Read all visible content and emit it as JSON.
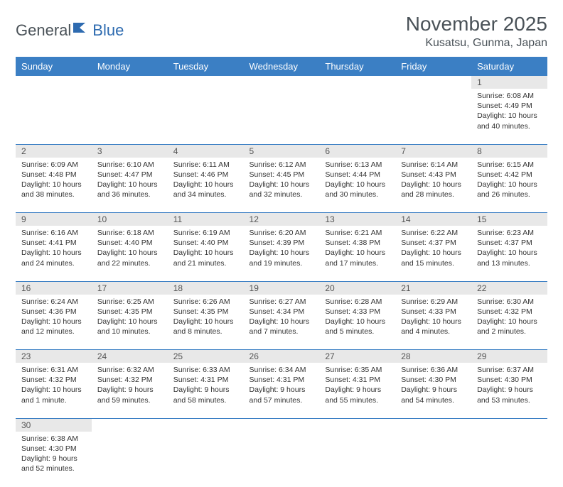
{
  "logo": {
    "text1": "General",
    "text2": "Blue"
  },
  "title": "November 2025",
  "location": "Kusatsu, Gunma, Japan",
  "colors": {
    "header_bg": "#3b7fc4",
    "header_text": "#ffffff",
    "daynum_bg": "#e8e8e8",
    "text": "#4a5258",
    "cell_text": "#333333",
    "border": "#3b7fc4",
    "logo_accent": "#2e6bb0"
  },
  "weekdays": [
    "Sunday",
    "Monday",
    "Tuesday",
    "Wednesday",
    "Thursday",
    "Friday",
    "Saturday"
  ],
  "weeks": [
    {
      "nums": [
        "",
        "",
        "",
        "",
        "",
        "",
        "1"
      ],
      "cells": [
        null,
        null,
        null,
        null,
        null,
        null,
        {
          "sunrise": "6:08 AM",
          "sunset": "4:49 PM",
          "daylight": "10 hours and 40 minutes."
        }
      ]
    },
    {
      "nums": [
        "2",
        "3",
        "4",
        "5",
        "6",
        "7",
        "8"
      ],
      "cells": [
        {
          "sunrise": "6:09 AM",
          "sunset": "4:48 PM",
          "daylight": "10 hours and 38 minutes."
        },
        {
          "sunrise": "6:10 AM",
          "sunset": "4:47 PM",
          "daylight": "10 hours and 36 minutes."
        },
        {
          "sunrise": "6:11 AM",
          "sunset": "4:46 PM",
          "daylight": "10 hours and 34 minutes."
        },
        {
          "sunrise": "6:12 AM",
          "sunset": "4:45 PM",
          "daylight": "10 hours and 32 minutes."
        },
        {
          "sunrise": "6:13 AM",
          "sunset": "4:44 PM",
          "daylight": "10 hours and 30 minutes."
        },
        {
          "sunrise": "6:14 AM",
          "sunset": "4:43 PM",
          "daylight": "10 hours and 28 minutes."
        },
        {
          "sunrise": "6:15 AM",
          "sunset": "4:42 PM",
          "daylight": "10 hours and 26 minutes."
        }
      ]
    },
    {
      "nums": [
        "9",
        "10",
        "11",
        "12",
        "13",
        "14",
        "15"
      ],
      "cells": [
        {
          "sunrise": "6:16 AM",
          "sunset": "4:41 PM",
          "daylight": "10 hours and 24 minutes."
        },
        {
          "sunrise": "6:18 AM",
          "sunset": "4:40 PM",
          "daylight": "10 hours and 22 minutes."
        },
        {
          "sunrise": "6:19 AM",
          "sunset": "4:40 PM",
          "daylight": "10 hours and 21 minutes."
        },
        {
          "sunrise": "6:20 AM",
          "sunset": "4:39 PM",
          "daylight": "10 hours and 19 minutes."
        },
        {
          "sunrise": "6:21 AM",
          "sunset": "4:38 PM",
          "daylight": "10 hours and 17 minutes."
        },
        {
          "sunrise": "6:22 AM",
          "sunset": "4:37 PM",
          "daylight": "10 hours and 15 minutes."
        },
        {
          "sunrise": "6:23 AM",
          "sunset": "4:37 PM",
          "daylight": "10 hours and 13 minutes."
        }
      ]
    },
    {
      "nums": [
        "16",
        "17",
        "18",
        "19",
        "20",
        "21",
        "22"
      ],
      "cells": [
        {
          "sunrise": "6:24 AM",
          "sunset": "4:36 PM",
          "daylight": "10 hours and 12 minutes."
        },
        {
          "sunrise": "6:25 AM",
          "sunset": "4:35 PM",
          "daylight": "10 hours and 10 minutes."
        },
        {
          "sunrise": "6:26 AM",
          "sunset": "4:35 PM",
          "daylight": "10 hours and 8 minutes."
        },
        {
          "sunrise": "6:27 AM",
          "sunset": "4:34 PM",
          "daylight": "10 hours and 7 minutes."
        },
        {
          "sunrise": "6:28 AM",
          "sunset": "4:33 PM",
          "daylight": "10 hours and 5 minutes."
        },
        {
          "sunrise": "6:29 AM",
          "sunset": "4:33 PM",
          "daylight": "10 hours and 4 minutes."
        },
        {
          "sunrise": "6:30 AM",
          "sunset": "4:32 PM",
          "daylight": "10 hours and 2 minutes."
        }
      ]
    },
    {
      "nums": [
        "23",
        "24",
        "25",
        "26",
        "27",
        "28",
        "29"
      ],
      "cells": [
        {
          "sunrise": "6:31 AM",
          "sunset": "4:32 PM",
          "daylight": "10 hours and 1 minute."
        },
        {
          "sunrise": "6:32 AM",
          "sunset": "4:32 PM",
          "daylight": "9 hours and 59 minutes."
        },
        {
          "sunrise": "6:33 AM",
          "sunset": "4:31 PM",
          "daylight": "9 hours and 58 minutes."
        },
        {
          "sunrise": "6:34 AM",
          "sunset": "4:31 PM",
          "daylight": "9 hours and 57 minutes."
        },
        {
          "sunrise": "6:35 AM",
          "sunset": "4:31 PM",
          "daylight": "9 hours and 55 minutes."
        },
        {
          "sunrise": "6:36 AM",
          "sunset": "4:30 PM",
          "daylight": "9 hours and 54 minutes."
        },
        {
          "sunrise": "6:37 AM",
          "sunset": "4:30 PM",
          "daylight": "9 hours and 53 minutes."
        }
      ]
    },
    {
      "nums": [
        "30",
        "",
        "",
        "",
        "",
        "",
        ""
      ],
      "cells": [
        {
          "sunrise": "6:38 AM",
          "sunset": "4:30 PM",
          "daylight": "9 hours and 52 minutes."
        },
        null,
        null,
        null,
        null,
        null,
        null
      ]
    }
  ],
  "labels": {
    "sunrise": "Sunrise:",
    "sunset": "Sunset:",
    "daylight": "Daylight:"
  }
}
